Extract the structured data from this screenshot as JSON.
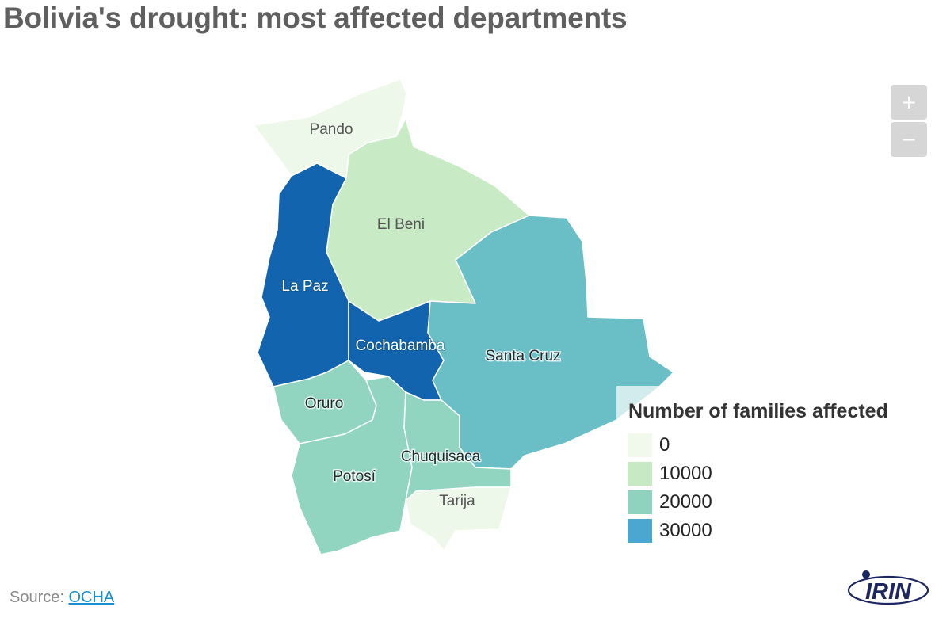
{
  "title": "Bolivia's drought: most affected departments",
  "map": {
    "regions": [
      {
        "id": "pando",
        "label": "Pando",
        "families_bin": 0,
        "color": "#eef8ea"
      },
      {
        "id": "beni",
        "label": "El Beni",
        "families_bin": 10000,
        "color": "#c8ebc5"
      },
      {
        "id": "lapaz",
        "label": "La Paz",
        "families_bin": 30000,
        "color": "#1164ad"
      },
      {
        "id": "cochabamba",
        "label": "Cochabamba",
        "families_bin": 30000,
        "color": "#1164ad"
      },
      {
        "id": "santacruz",
        "label": "Santa Cruz",
        "families_bin": 20000,
        "color": "#6abfc6"
      },
      {
        "id": "oruro",
        "label": "Oruro",
        "families_bin": 20000,
        "color": "#91d5c0"
      },
      {
        "id": "potosi",
        "label": "Potosí",
        "families_bin": 20000,
        "color": "#91d5c0"
      },
      {
        "id": "chuquisaca",
        "label": "Chuquisaca",
        "families_bin": 20000,
        "color": "#91d5c0"
      },
      {
        "id": "tarija",
        "label": "Tarija",
        "families_bin": 0,
        "color": "#eef8ea"
      }
    ]
  },
  "zoom": {
    "in_label": "+",
    "out_label": "−"
  },
  "legend": {
    "title": "Number of families affected",
    "items": [
      {
        "label": "0",
        "color": "#f0f9ec"
      },
      {
        "label": "10000",
        "color": "#c7eac4"
      },
      {
        "label": "20000",
        "color": "#8fd3bf"
      },
      {
        "label": "30000",
        "color": "#4ba7cf"
      }
    ]
  },
  "source": {
    "prefix": "Source: ",
    "link_text": "OCHA"
  },
  "logo": {
    "text": "IRIN",
    "icon": "irin-logo-icon"
  }
}
